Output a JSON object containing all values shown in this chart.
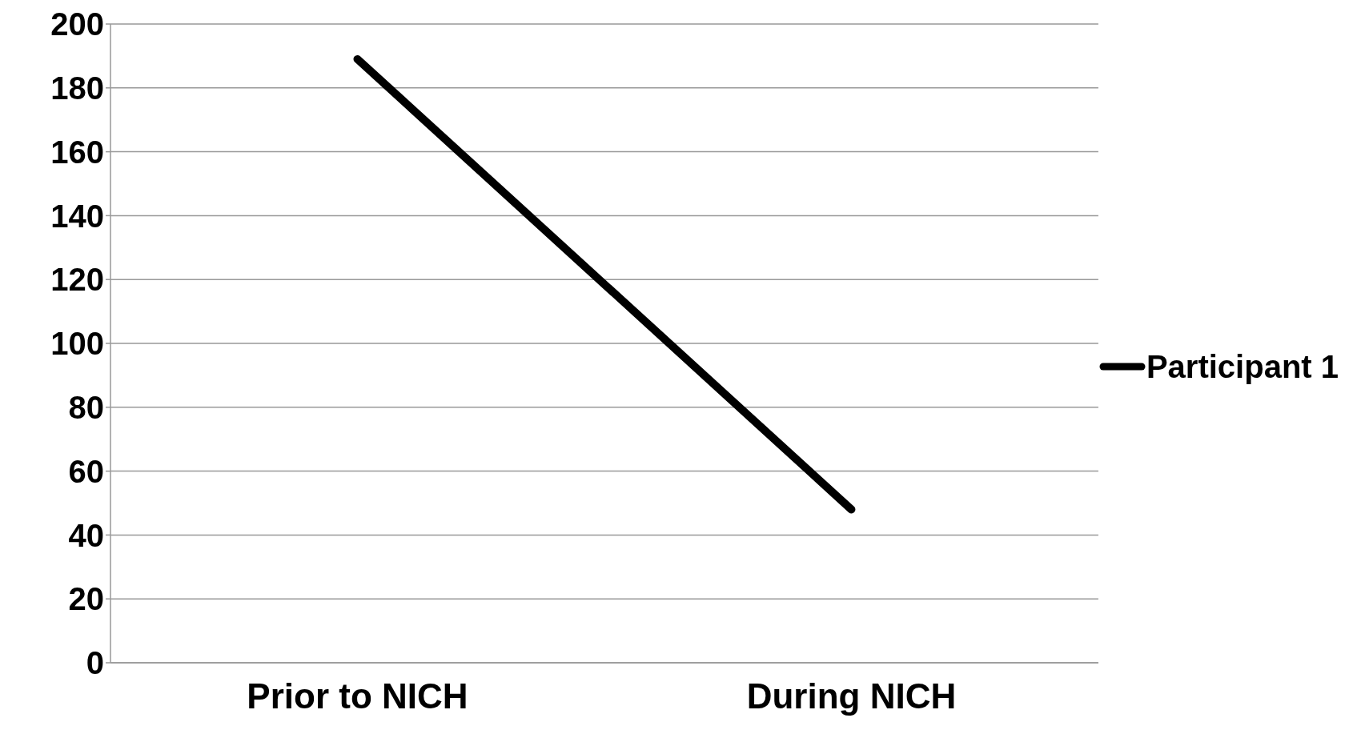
{
  "chart_data": {
    "type": "line",
    "categories": [
      "Prior to NICH",
      "During NICH"
    ],
    "series": [
      {
        "name": "Participant 1",
        "color": "#000000",
        "values": [
          189,
          48
        ]
      }
    ],
    "ylim": [
      0,
      200
    ],
    "yticks": [
      0,
      20,
      40,
      60,
      80,
      100,
      120,
      140,
      160,
      180,
      200
    ],
    "grid": "y",
    "legend": "right",
    "marker": "none",
    "line_style": "solid"
  }
}
